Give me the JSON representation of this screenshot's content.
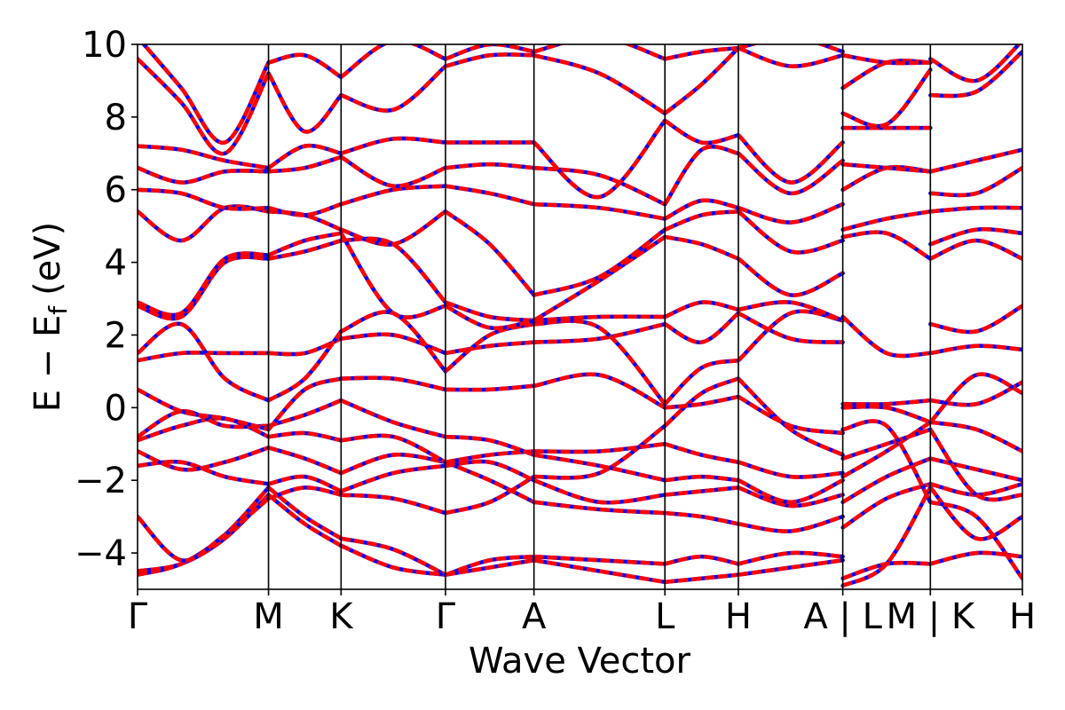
{
  "chart_data": {
    "type": "line",
    "title": "",
    "xlabel": "Wave Vector",
    "ylabel": {
      "main": "E − E",
      "subscript": "f",
      "unit": "(eV)"
    },
    "ylim": [
      -5,
      10
    ],
    "yticks": [
      {
        "value": -4,
        "label": "−4"
      },
      {
        "value": -2,
        "label": "−2"
      },
      {
        "value": 0,
        "label": "0"
      },
      {
        "value": 2,
        "label": "2"
      },
      {
        "value": 4,
        "label": "4"
      },
      {
        "value": 6,
        "label": "6"
      },
      {
        "value": 8,
        "label": "8"
      },
      {
        "value": 10,
        "label": "10"
      }
    ],
    "xlim": [
      0,
      1
    ],
    "kpath": [
      {
        "label": "Γ",
        "x": 0.0
      },
      {
        "label": "M",
        "x": 0.148
      },
      {
        "label": "K",
        "x": 0.23
      },
      {
        "label": "Γ",
        "x": 0.348
      },
      {
        "label": "A",
        "x": 0.448
      },
      {
        "label": "L",
        "x": 0.596
      },
      {
        "label": "H",
        "x": 0.679
      },
      {
        "label": "A | L",
        "x": 0.797
      },
      {
        "label": "M | K",
        "x": 0.896
      },
      {
        "label": "H",
        "x": 1.0
      }
    ],
    "series_colors": {
      "dashed": "#0000ff",
      "solid": "#ff0000"
    },
    "segments": [
      {
        "x": [
          0.0,
          0.148
        ],
        "bands": [
          [
            -4.6,
            -4.3,
            -3.5,
            -2.2
          ],
          [
            -4.5,
            -4.3,
            -3.6,
            -2.4
          ],
          [
            -3.0,
            -4.2,
            -3.5,
            -2.5
          ],
          [
            -1.6,
            -1.5,
            -1.9,
            -2.1
          ],
          [
            -1.2,
            -1.7,
            -1.5,
            -1.1
          ],
          [
            -0.9,
            -0.5,
            -0.3,
            -0.8
          ],
          [
            -0.8,
            -0.1,
            -0.5,
            -0.5
          ],
          [
            0.5,
            -0.1,
            -0.3,
            -0.6
          ],
          [
            1.3,
            1.5,
            1.5,
            1.5
          ],
          [
            1.5,
            2.3,
            0.8,
            0.2
          ],
          [
            2.8,
            2.5,
            4.0,
            4.1
          ],
          [
            2.9,
            2.6,
            4.1,
            4.2
          ],
          [
            5.4,
            4.6,
            5.5,
            5.4
          ],
          [
            6.0,
            5.9,
            5.5,
            5.5
          ],
          [
            6.6,
            6.2,
            6.5,
            6.5
          ],
          [
            7.2,
            7.1,
            6.8,
            6.6
          ],
          [
            9.6,
            8.4,
            7.0,
            9.2
          ],
          [
            10.2,
            8.8,
            7.3,
            9.5
          ]
        ]
      },
      {
        "x": [
          0.148,
          0.23
        ],
        "bands": [
          [
            -2.2,
            -3.0,
            -3.6
          ],
          [
            -2.4,
            -3.2,
            -3.8
          ],
          [
            -2.5,
            -2.2,
            -2.4
          ],
          [
            -2.1,
            -1.9,
            -2.3
          ],
          [
            -1.1,
            -1.4,
            -1.8
          ],
          [
            -0.8,
            -0.7,
            -0.9
          ],
          [
            -0.5,
            -0.2,
            0.2
          ],
          [
            -0.6,
            0.5,
            0.8
          ],
          [
            1.5,
            1.5,
            1.9
          ],
          [
            0.2,
            0.8,
            2.1
          ],
          [
            4.1,
            4.3,
            4.6
          ],
          [
            4.2,
            4.6,
            4.8
          ],
          [
            5.4,
            5.3,
            4.9
          ],
          [
            5.5,
            5.3,
            5.6
          ],
          [
            6.5,
            6.6,
            6.9
          ],
          [
            6.6,
            7.2,
            7.0
          ],
          [
            9.2,
            7.6,
            8.6
          ],
          [
            9.5,
            9.7,
            9.1
          ]
        ]
      },
      {
        "x": [
          0.23,
          0.348
        ],
        "bands": [
          [
            -3.6,
            -3.9,
            -4.6
          ],
          [
            -3.8,
            -4.4,
            -4.6
          ],
          [
            -2.4,
            -2.5,
            -2.9
          ],
          [
            -2.3,
            -1.8,
            -1.6
          ],
          [
            -1.8,
            -1.3,
            -1.5
          ],
          [
            -0.9,
            -0.8,
            -1.5
          ],
          [
            0.2,
            -0.4,
            -0.8
          ],
          [
            0.8,
            0.8,
            0.5
          ],
          [
            1.9,
            2.0,
            1.5
          ],
          [
            2.1,
            2.6,
            1.0
          ],
          [
            4.6,
            4.5,
            2.9
          ],
          [
            4.8,
            2.6,
            2.8
          ],
          [
            4.9,
            4.5,
            5.4
          ],
          [
            5.6,
            6.0,
            6.1
          ],
          [
            6.9,
            6.1,
            6.6
          ],
          [
            7.0,
            7.4,
            7.3
          ],
          [
            8.6,
            8.2,
            9.4
          ],
          [
            9.1,
            10.1,
            9.6
          ]
        ]
      },
      {
        "x": [
          0.348,
          0.448
        ],
        "bands": [
          [
            -4.6,
            -4.4,
            -4.2
          ],
          [
            -4.6,
            -4.2,
            -4.1
          ],
          [
            -2.9,
            -2.6,
            -1.9
          ],
          [
            -1.6,
            -1.5,
            -2.0
          ],
          [
            -1.5,
            -1.3,
            -1.2
          ],
          [
            -1.5,
            -2.0,
            -2.6
          ],
          [
            -0.8,
            -0.9,
            -1.3
          ],
          [
            0.5,
            0.5,
            0.6
          ],
          [
            1.5,
            1.7,
            1.8
          ],
          [
            1.0,
            2.0,
            2.3
          ],
          [
            2.9,
            2.5,
            2.4
          ],
          [
            2.8,
            2.2,
            2.4
          ],
          [
            5.4,
            4.5,
            3.1
          ],
          [
            6.1,
            5.9,
            5.6
          ],
          [
            6.6,
            6.7,
            6.6
          ],
          [
            7.3,
            7.3,
            7.3
          ],
          [
            9.4,
            9.7,
            9.7
          ],
          [
            9.6,
            10.0,
            9.8
          ]
        ]
      },
      {
        "x": [
          0.448,
          0.596
        ],
        "bands": [
          [
            -4.2,
            -4.5,
            -4.8
          ],
          [
            -4.1,
            -4.2,
            -4.3
          ],
          [
            -1.9,
            -1.8,
            -0.5
          ],
          [
            -2.0,
            -2.6,
            -2.4
          ],
          [
            -1.2,
            -1.2,
            -1.0
          ],
          [
            -2.6,
            -2.8,
            -2.9
          ],
          [
            -1.3,
            -1.6,
            -2.0
          ],
          [
            0.6,
            0.9,
            0.0
          ],
          [
            1.8,
            1.9,
            2.3
          ],
          [
            2.3,
            2.2,
            0.1
          ],
          [
            2.4,
            2.5,
            2.5
          ],
          [
            2.4,
            3.5,
            4.7
          ],
          [
            3.1,
            3.6,
            4.9
          ],
          [
            5.6,
            5.5,
            5.2
          ],
          [
            6.6,
            6.4,
            5.6
          ],
          [
            7.3,
            5.8,
            7.9
          ],
          [
            9.7,
            9.2,
            8.1
          ],
          [
            9.8,
            10.2,
            9.6
          ]
        ]
      },
      {
        "x": [
          0.596,
          0.679
        ],
        "bands": [
          [
            -4.8,
            -4.7,
            -4.6
          ],
          [
            -4.3,
            -4.1,
            -4.3
          ],
          [
            -0.5,
            0.4,
            0.8
          ],
          [
            -2.4,
            -2.3,
            -2.2
          ],
          [
            -1.0,
            -1.3,
            -1.5
          ],
          [
            -2.9,
            -3.0,
            -3.2
          ],
          [
            -2.0,
            -1.9,
            -2.0
          ],
          [
            0.0,
            0.1,
            0.3
          ],
          [
            2.3,
            1.8,
            2.6
          ],
          [
            0.1,
            1.1,
            1.3
          ],
          [
            2.5,
            2.9,
            2.7
          ],
          [
            4.7,
            4.5,
            4.1
          ],
          [
            4.9,
            5.3,
            5.4
          ],
          [
            5.2,
            5.7,
            5.5
          ],
          [
            5.6,
            7.1,
            7.0
          ],
          [
            7.9,
            7.3,
            7.5
          ],
          [
            8.1,
            8.9,
            9.9
          ],
          [
            9.6,
            9.8,
            9.9
          ]
        ]
      },
      {
        "x": [
          0.679,
          0.797
        ],
        "bands": [
          [
            -4.6,
            -4.4,
            -4.2
          ],
          [
            -4.3,
            -4.0,
            -4.1
          ],
          [
            0.8,
            -0.6,
            -1.3
          ],
          [
            -2.2,
            -2.7,
            -2.4
          ],
          [
            -1.5,
            -1.9,
            -1.8
          ],
          [
            -3.2,
            -3.4,
            -3.0
          ],
          [
            -2.0,
            -2.6,
            -2.0
          ],
          [
            0.3,
            -0.5,
            -0.7
          ],
          [
            2.6,
            1.9,
            1.8
          ],
          [
            1.3,
            2.6,
            2.4
          ],
          [
            2.7,
            2.9,
            2.4
          ],
          [
            4.1,
            3.1,
            3.7
          ],
          [
            5.4,
            4.3,
            4.6
          ],
          [
            5.5,
            5.1,
            5.6
          ],
          [
            7.0,
            5.9,
            6.8
          ],
          [
            7.5,
            6.2,
            7.3
          ],
          [
            9.9,
            9.4,
            9.7
          ],
          [
            9.9,
            10.2,
            9.8
          ]
        ]
      },
      {
        "x": [
          0.797,
          0.896
        ],
        "bands": [
          [
            -4.9,
            -4.3,
            -2.2
          ],
          [
            -4.7,
            -4.3,
            -4.3
          ],
          [
            -3.3,
            -2.5,
            -2.1
          ],
          [
            -2.6,
            -1.9,
            -1.4
          ],
          [
            -1.9,
            -1.2,
            -0.4
          ],
          [
            -1.4,
            -1.0,
            -0.6
          ],
          [
            -0.6,
            -0.5,
            -2.6
          ],
          [
            0.1,
            0.1,
            0.2
          ],
          [
            0.0,
            0.0,
            -0.4
          ],
          [
            2.5,
            1.5,
            1.5
          ],
          [
            4.7,
            4.8,
            4.1
          ],
          [
            4.9,
            5.2,
            5.4
          ],
          [
            6.0,
            6.6,
            6.5
          ],
          [
            6.7,
            6.6,
            6.5
          ],
          [
            7.7,
            7.7,
            7.7
          ],
          [
            8.1,
            7.8,
            9.3
          ],
          [
            8.8,
            9.5,
            9.5
          ],
          [
            9.7,
            9.5,
            9.5
          ]
        ]
      },
      {
        "x": [
          0.896,
          1.0
        ],
        "bands": [
          [
            -2.2,
            -3.6,
            -3.0
          ],
          [
            -4.3,
            -4.0,
            -4.1
          ],
          [
            -2.1,
            -2.4,
            -2.1
          ],
          [
            -1.4,
            -1.7,
            -2.0
          ],
          [
            -0.4,
            -0.6,
            -1.2
          ],
          [
            -0.6,
            -2.4,
            -2.4
          ],
          [
            -2.6,
            -3.0,
            -4.7
          ],
          [
            0.2,
            0.1,
            0.7
          ],
          [
            -0.4,
            0.9,
            0.4
          ],
          [
            1.5,
            1.7,
            1.6
          ],
          [
            2.3,
            2.1,
            2.8
          ],
          [
            4.1,
            4.6,
            4.1
          ],
          [
            4.5,
            4.9,
            4.8
          ],
          [
            5.4,
            5.5,
            5.5
          ],
          [
            5.9,
            5.9,
            6.6
          ],
          [
            6.5,
            6.8,
            7.1
          ],
          [
            8.6,
            8.7,
            9.8
          ],
          [
            9.6,
            9.0,
            10.1
          ]
        ]
      }
    ]
  }
}
